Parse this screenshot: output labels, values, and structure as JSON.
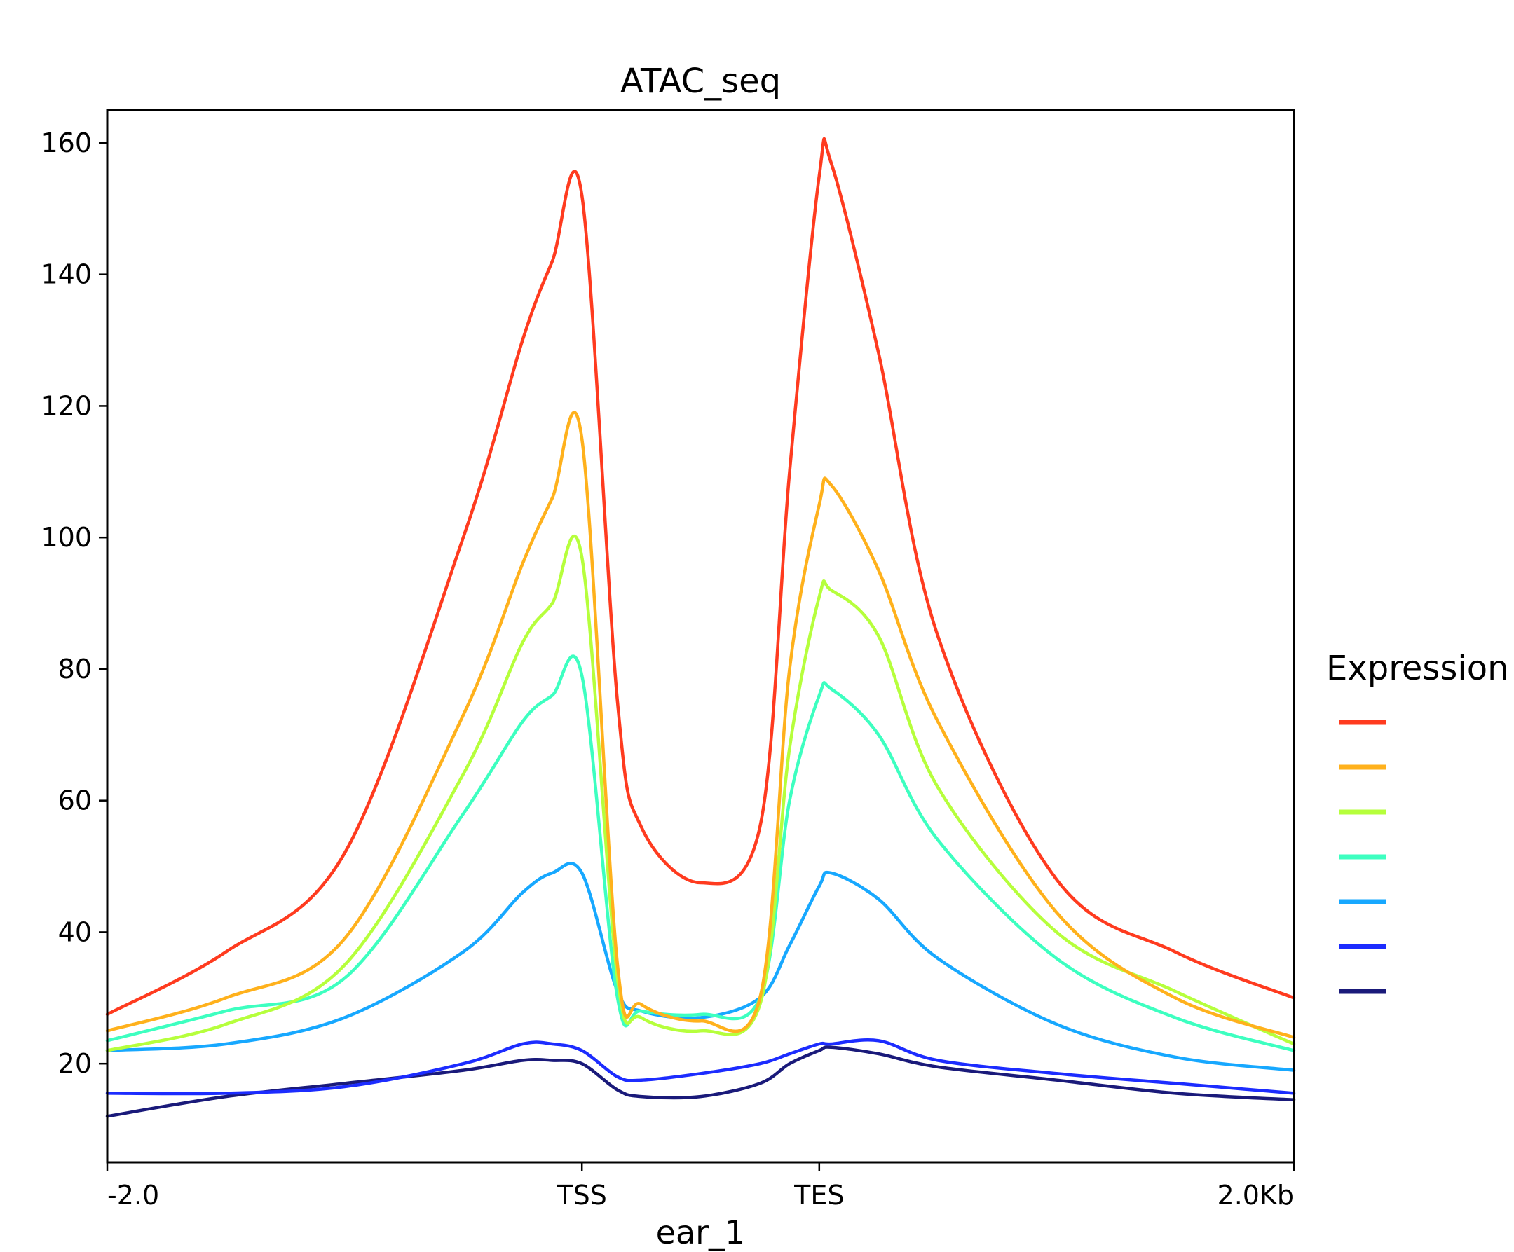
{
  "chart_data": {
    "type": "line",
    "title": "ATAC_seq",
    "xlabel": "ear_1",
    "ylabel": "",
    "x": [
      0,
      0.1,
      0.2,
      0.3,
      0.35,
      0.375,
      0.4,
      0.43,
      0.45,
      0.5,
      0.55,
      0.575,
      0.6,
      0.61,
      0.65,
      0.7,
      0.8,
      0.9,
      1.0
    ],
    "xlim": [
      0,
      1
    ],
    "x_ticks": [
      {
        "pos": 0.0,
        "label": "-2.0"
      },
      {
        "pos": 0.4,
        "label": "TSS"
      },
      {
        "pos": 0.6,
        "label": "TES"
      },
      {
        "pos": 1.0,
        "label": "2.0Kb"
      }
    ],
    "ylim": [
      5,
      165
    ],
    "y_ticks": [
      20,
      40,
      60,
      80,
      100,
      120,
      140,
      160
    ],
    "grid": false,
    "legend": {
      "title": "Expression",
      "position": "right"
    },
    "series": [
      {
        "color": "#ff3b1f",
        "values": [
          27.5,
          37,
          52,
          100,
          130,
          142,
          152,
          75,
          56,
          47.5,
          56,
          110,
          155,
          157,
          128,
          85,
          48,
          37,
          30
        ]
      },
      {
        "color": "#ffb11c",
        "values": [
          25,
          30,
          39,
          73,
          96,
          106,
          115,
          35,
          29,
          26.5,
          30,
          80,
          105,
          108,
          95,
          72,
          43,
          30,
          24
        ]
      },
      {
        "color": "#b6ff3c",
        "values": [
          22,
          26,
          35,
          64,
          84,
          90,
          97,
          33,
          27,
          25,
          29,
          68,
          91,
          92,
          85,
          62,
          40,
          31,
          23
        ]
      },
      {
        "color": "#3dffc0",
        "values": [
          23.5,
          28,
          33,
          58,
          72,
          76,
          79,
          30,
          28,
          27.5,
          30,
          60,
          76,
          77,
          70,
          54,
          36,
          27,
          22
        ]
      },
      {
        "color": "#17a8ff",
        "values": [
          22,
          23,
          27,
          37,
          46,
          49,
          49,
          31,
          28,
          27,
          30,
          38,
          47,
          49,
          45,
          36,
          26,
          21,
          19
        ]
      },
      {
        "color": "#1c2cff",
        "values": [
          15.5,
          15.5,
          16.5,
          20,
          23,
          23,
          22,
          18,
          17.5,
          18.5,
          20,
          21.5,
          23,
          23,
          23.5,
          20.5,
          18.5,
          17,
          15.5
        ]
      },
      {
        "color": "#1a1a7a",
        "values": [
          12,
          15,
          17,
          19,
          20.5,
          20.5,
          20,
          16,
          15,
          15,
          17,
          20,
          22,
          22.5,
          21.5,
          19.5,
          17.5,
          15.5,
          14.5
        ]
      }
    ]
  }
}
